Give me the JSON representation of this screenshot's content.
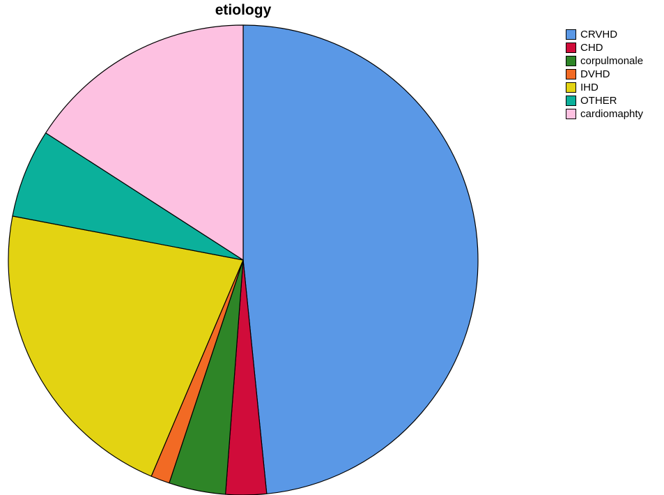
{
  "chart_data": {
    "type": "pie",
    "title": "etiology",
    "legend_position": "top-right",
    "start_angle_deg": 0,
    "direction": "clockwise",
    "slices": [
      {
        "label": "CRVHD",
        "value": 48.4,
        "color": "#5a98e6"
      },
      {
        "label": "CHD",
        "value": 2.8,
        "color": "#d00c3a"
      },
      {
        "label": "corpulmonale",
        "value": 3.9,
        "color": "#2e8527"
      },
      {
        "label": "DVHD",
        "value": 1.3,
        "color": "#f26a24"
      },
      {
        "label": "IHD",
        "value": 21.6,
        "color": "#e3d312"
      },
      {
        "label": "OTHER",
        "value": 6.1,
        "color": "#0bb09b"
      },
      {
        "label": "cardiomaphty",
        "value": 15.9,
        "color": "#fdc1e1"
      }
    ]
  }
}
